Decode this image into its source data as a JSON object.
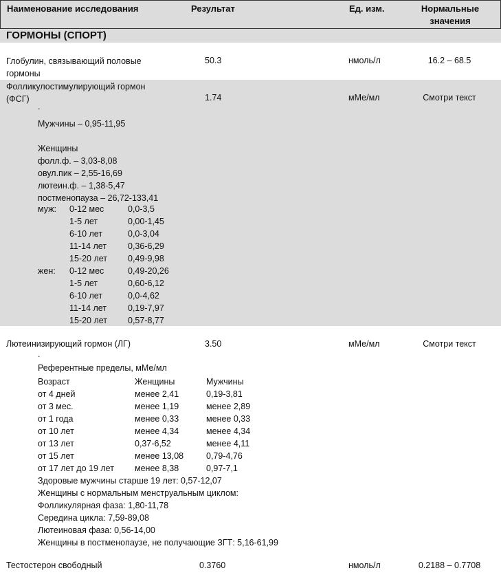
{
  "header": {
    "name": "Наименование исследования",
    "result": "Результат",
    "unit": "Ед. изм.",
    "norm_line1": "Нормальные",
    "norm_line2": "значения"
  },
  "section": "ГОРМОНЫ (СПОРТ)",
  "rows": [
    {
      "name_line1": "Глобулин, связывающий половые",
      "name_line2": "гормоны",
      "result": "50.3",
      "unit": "нмоль/л",
      "norm": "16.2 – 68.5"
    },
    {
      "name_line1": "Фолликулостимулирующий гормон",
      "name_line2": "(ФСГ)",
      "result": "1.74",
      "unit": "мМе/мл",
      "norm": "Смотри текст",
      "dot": ".",
      "notes": [
        "Мужчины – 0,95-11,95",
        "",
        "Женщины",
        "фолл.ф. – 3,03-8,08",
        "овул.пик – 2,55-16,69",
        "лютеин.ф. – 1,38-5,47",
        "постменопауза – 26,72-133,41"
      ],
      "age_table": [
        [
          "муж:",
          "0-12 мес",
          "0,0-3,5"
        ],
        [
          "",
          "1-5 лет",
          "0,00-1,45"
        ],
        [
          "",
          "6-10 лет",
          "0,0-3,04"
        ],
        [
          "",
          "11-14 лет",
          "0,36-6,29"
        ],
        [
          "",
          "15-20 лет",
          "0,49-9,98"
        ],
        [
          "жен:",
          "0-12 мес",
          "0,49-20,26"
        ],
        [
          "",
          "1-5 лет",
          "0,60-6,12"
        ],
        [
          "",
          "6-10 лет",
          "0,0-4,62"
        ],
        [
          "",
          "11-14 лет",
          "0,19-7,97"
        ],
        [
          "",
          "15-20 лет",
          "0,57-8,77"
        ]
      ]
    },
    {
      "name": "Лютеинизирующий гормон (ЛГ)",
      "result": "3.50",
      "unit": "мМе/мл",
      "norm": "Смотри текст",
      "dot": ".",
      "ref_title": "Референтные пределы, мМе/мл",
      "ref_table": [
        [
          "Возраст",
          "Женщины",
          "Мужчины"
        ],
        [
          "от  4 дней",
          "менее 2,41",
          "0,19-3,81"
        ],
        [
          "от  3 мес.",
          "менее 1,19",
          "менее 2,89"
        ],
        [
          "от  1 года",
          "менее 0,33",
          "менее 0,33"
        ],
        [
          "от  10 лет",
          "менее 4,34",
          "менее 4,34"
        ],
        [
          "от  13 лет",
          "0,37-6,52",
          "менее 4,11"
        ],
        [
          "от  15 лет",
          "менее 13,08",
          "0,79-4,76"
        ],
        [
          "от  17 лет до 19 лет",
          "менее 8,38",
          "0,97-7,1"
        ]
      ],
      "notes": [
        "Здоровые мужчины старше 19 лет: 0,57-12,07",
        "Женщины с нормальным менструальным циклом:",
        "Фолликулярная фаза: 1,80-11,78",
        "Середина цикла: 7,59-89,08",
        "Лютеиновая фаза: 0,56-14,00",
        "Женщины в постменопаузе, не получающие ЗГТ: 5,16-61,99"
      ]
    },
    {
      "name": "Тестостерон свободный",
      "result": "0.3760",
      "unit": "нмоль/л",
      "norm": "0.2188 – 0.7708"
    }
  ]
}
